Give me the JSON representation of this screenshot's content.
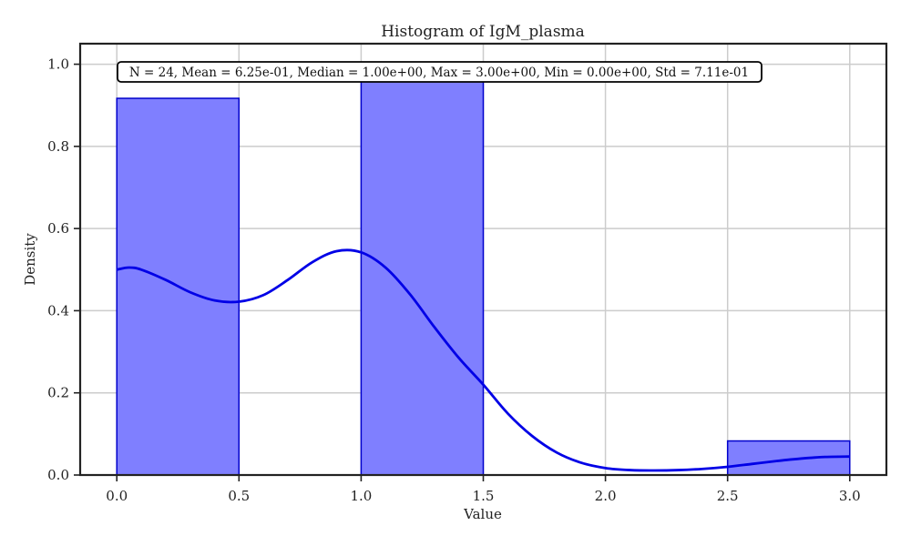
{
  "chart_data": {
    "type": "bar",
    "title": "Histogram of IgM_plasma",
    "xlabel": "Value",
    "ylabel": "Density",
    "xlim": [
      -0.15,
      3.15
    ],
    "ylim": [
      0,
      1.05
    ],
    "xticks": [
      0.0,
      0.5,
      1.0,
      1.5,
      2.0,
      2.5,
      3.0
    ],
    "xtick_labels": [
      "0.0",
      "0.5",
      "1.0",
      "1.5",
      "2.0",
      "2.5",
      "3.0"
    ],
    "yticks": [
      0.0,
      0.2,
      0.4,
      0.6,
      0.8,
      1.0
    ],
    "ytick_labels": [
      "0.0",
      "0.2",
      "0.4",
      "0.6",
      "0.8",
      "1.0"
    ],
    "grid": true,
    "bins": [
      {
        "start": 0.0,
        "end": 0.5,
        "density": 0.917
      },
      {
        "start": 1.0,
        "end": 1.5,
        "density": 1.0
      },
      {
        "start": 2.5,
        "end": 3.0,
        "density": 0.083
      }
    ],
    "kde": {
      "x": [
        0.0,
        0.05,
        0.1,
        0.2,
        0.3,
        0.4,
        0.5,
        0.6,
        0.7,
        0.8,
        0.9,
        1.0,
        1.1,
        1.2,
        1.3,
        1.4,
        1.5,
        1.6,
        1.7,
        1.8,
        1.9,
        2.0,
        2.1,
        2.2,
        2.3,
        2.4,
        2.5,
        2.6,
        2.7,
        2.8,
        2.9,
        3.0
      ],
      "y": [
        0.5,
        0.505,
        0.5,
        0.475,
        0.445,
        0.425,
        0.422,
        0.438,
        0.475,
        0.518,
        0.545,
        0.542,
        0.505,
        0.44,
        0.36,
        0.285,
        0.22,
        0.15,
        0.095,
        0.055,
        0.03,
        0.017,
        0.012,
        0.011,
        0.012,
        0.015,
        0.02,
        0.027,
        0.034,
        0.04,
        0.044,
        0.045
      ]
    },
    "stats_annotation": "N = 24, Mean = 6.25e-01, Median = 1.00e+00, Max = 3.00e+00, Min = 0.00e+00, Std = 7.11e-01",
    "bar_fill": "#7f7fff",
    "bar_edge": "#0000cc",
    "kde_color": "#0000e6",
    "grid_color": "#cccccc",
    "axis_color": "#222222"
  }
}
